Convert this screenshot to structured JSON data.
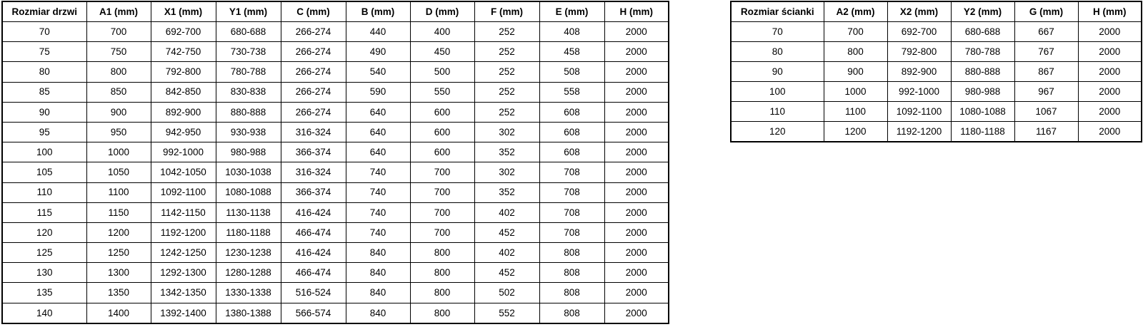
{
  "doors_table": {
    "title_column": "Rozmiar drzwi",
    "headers": [
      "Rozmiar drzwi",
      "A1 (mm)",
      "X1 (mm)",
      "Y1 (mm)",
      "C (mm)",
      "B (mm)",
      "D (mm)",
      "F (mm)",
      "E (mm)",
      "H (mm)"
    ],
    "rows": [
      [
        "70",
        "700",
        "692-700",
        "680-688",
        "266-274",
        "440",
        "400",
        "252",
        "408",
        "2000"
      ],
      [
        "75",
        "750",
        "742-750",
        "730-738",
        "266-274",
        "490",
        "450",
        "252",
        "458",
        "2000"
      ],
      [
        "80",
        "800",
        "792-800",
        "780-788",
        "266-274",
        "540",
        "500",
        "252",
        "508",
        "2000"
      ],
      [
        "85",
        "850",
        "842-850",
        "830-838",
        "266-274",
        "590",
        "550",
        "252",
        "558",
        "2000"
      ],
      [
        "90",
        "900",
        "892-900",
        "880-888",
        "266-274",
        "640",
        "600",
        "252",
        "608",
        "2000"
      ],
      [
        "95",
        "950",
        "942-950",
        "930-938",
        "316-324",
        "640",
        "600",
        "302",
        "608",
        "2000"
      ],
      [
        "100",
        "1000",
        "992-1000",
        "980-988",
        "366-374",
        "640",
        "600",
        "352",
        "608",
        "2000"
      ],
      [
        "105",
        "1050",
        "1042-1050",
        "1030-1038",
        "316-324",
        "740",
        "700",
        "302",
        "708",
        "2000"
      ],
      [
        "110",
        "1100",
        "1092-1100",
        "1080-1088",
        "366-374",
        "740",
        "700",
        "352",
        "708",
        "2000"
      ],
      [
        "115",
        "1150",
        "1142-1150",
        "1130-1138",
        "416-424",
        "740",
        "700",
        "402",
        "708",
        "2000"
      ],
      [
        "120",
        "1200",
        "1192-1200",
        "1180-1188",
        "466-474",
        "740",
        "700",
        "452",
        "708",
        "2000"
      ],
      [
        "125",
        "1250",
        "1242-1250",
        "1230-1238",
        "416-424",
        "840",
        "800",
        "402",
        "808",
        "2000"
      ],
      [
        "130",
        "1300",
        "1292-1300",
        "1280-1288",
        "466-474",
        "840",
        "800",
        "452",
        "808",
        "2000"
      ],
      [
        "135",
        "1350",
        "1342-1350",
        "1330-1338",
        "516-524",
        "840",
        "800",
        "502",
        "808",
        "2000"
      ],
      [
        "140",
        "1400",
        "1392-1400",
        "1380-1388",
        "566-574",
        "840",
        "800",
        "552",
        "808",
        "2000"
      ]
    ]
  },
  "wall_table": {
    "title_column": "Rozmiar ścianki",
    "headers": [
      "Rozmiar ścianki",
      "A2 (mm)",
      "X2 (mm)",
      "Y2 (mm)",
      "G (mm)",
      "H (mm)"
    ],
    "rows": [
      [
        "70",
        "700",
        "692-700",
        "680-688",
        "667",
        "2000"
      ],
      [
        "80",
        "800",
        "792-800",
        "780-788",
        "767",
        "2000"
      ],
      [
        "90",
        "900",
        "892-900",
        "880-888",
        "867",
        "2000"
      ],
      [
        "100",
        "1000",
        "992-1000",
        "980-988",
        "967",
        "2000"
      ],
      [
        "110",
        "1100",
        "1092-1100",
        "1080-1088",
        "1067",
        "2000"
      ],
      [
        "120",
        "1200",
        "1192-1200",
        "1180-1188",
        "1167",
        "2000"
      ]
    ]
  },
  "colors": {
    "border": "#000000",
    "text": "#000000",
    "background": "#ffffff"
  }
}
